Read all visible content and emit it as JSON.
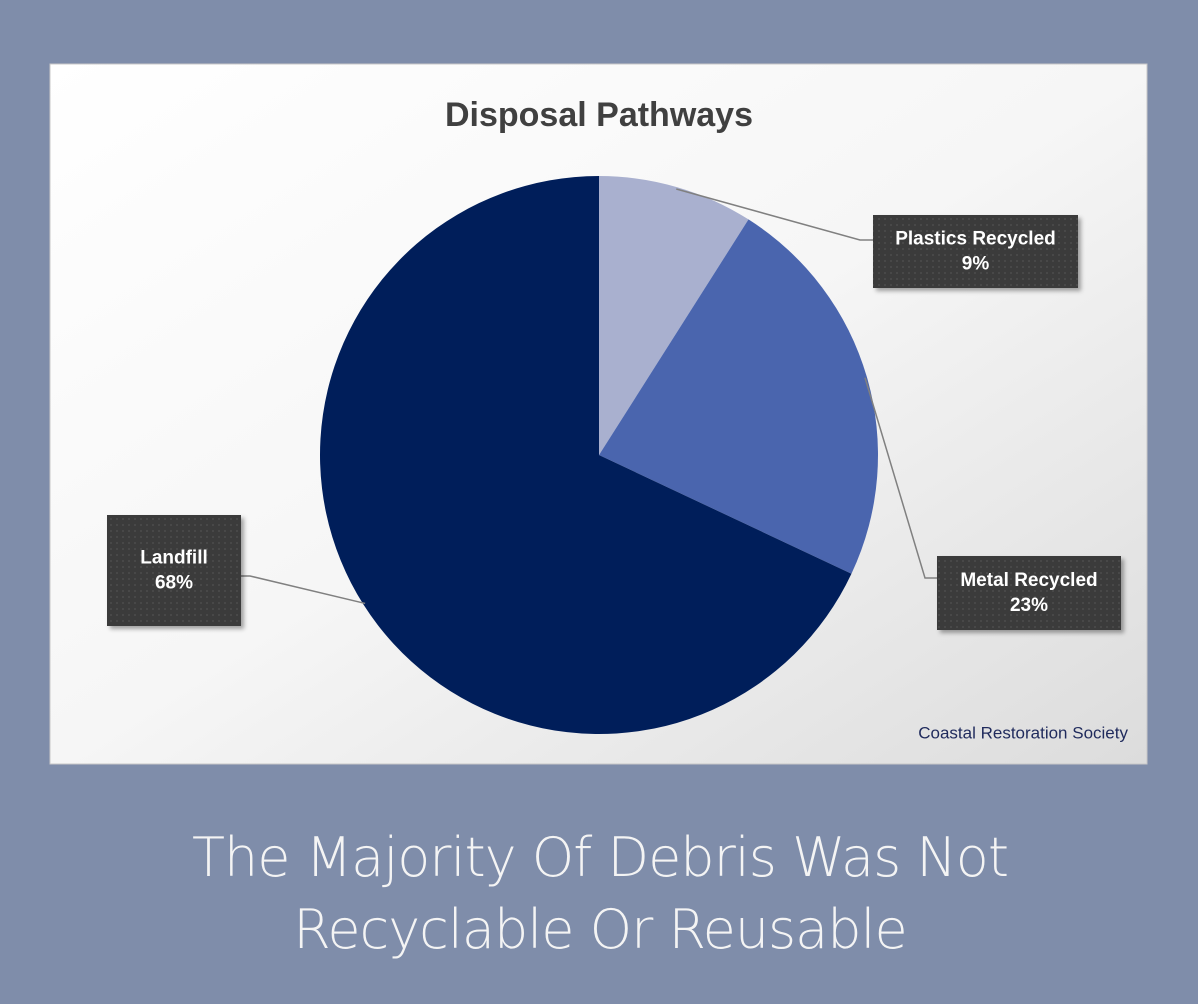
{
  "chart_data": {
    "type": "pie",
    "title": "Disposal Pathways",
    "categories": [
      "Plastics Recycled",
      "Metal Recycled",
      "Landfill"
    ],
    "values": [
      9,
      23,
      68
    ],
    "value_labels": [
      "9%",
      "23%",
      "68%"
    ],
    "colors": [
      "#a9b0cf",
      "#4a65ae",
      "#001e5a"
    ],
    "source": "Coastal Restoration Society"
  },
  "caption": "The Majority Of Debris Was Not Recyclable Or Reusable"
}
